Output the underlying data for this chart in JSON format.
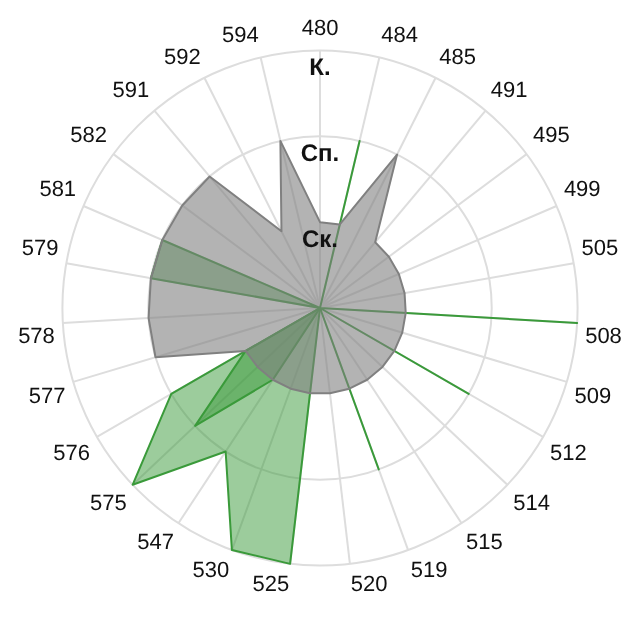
{
  "chart_data": {
    "type": "radar",
    "categories": [
      "480",
      "484",
      "485",
      "491",
      "495",
      "499",
      "505",
      "508",
      "509",
      "512",
      "514",
      "515",
      "519",
      "520",
      "525",
      "530",
      "547",
      "575",
      "576",
      "577",
      "578",
      "579",
      "581",
      "582",
      "591",
      "592",
      "594"
    ],
    "series": [
      {
        "color": "#808080",
        "values": [
          1,
          1,
          2,
          1,
          1,
          1,
          1,
          1,
          1,
          1,
          1,
          1,
          1,
          1,
          1,
          1,
          1,
          1,
          1,
          2,
          2,
          2,
          2,
          2,
          2,
          1,
          2
        ]
      },
      {
        "color": "#3a9a3a",
        "values": [
          0,
          0,
          0,
          0,
          0,
          0,
          0,
          0,
          0,
          0,
          0,
          0,
          0,
          0,
          3,
          3,
          2,
          3,
          2,
          0,
          0,
          0,
          0,
          0,
          0,
          0,
          0
        ]
      },
      {
        "color": "#3a9a3a",
        "values": [
          0,
          2,
          0,
          0,
          0,
          0,
          0,
          3,
          0,
          2,
          0,
          0,
          2,
          0,
          0,
          0,
          1,
          2,
          1,
          0,
          0,
          2,
          2,
          0,
          0,
          0,
          0
        ]
      }
    ],
    "ylim": [
      0,
      3
    ],
    "yticks": [
      {
        "value": 1,
        "label": "Ск."
      },
      {
        "value": 2,
        "label": "Сп."
      },
      {
        "value": 3,
        "label": "К."
      }
    ],
    "grid": true,
    "legend": false,
    "marker": "none"
  }
}
